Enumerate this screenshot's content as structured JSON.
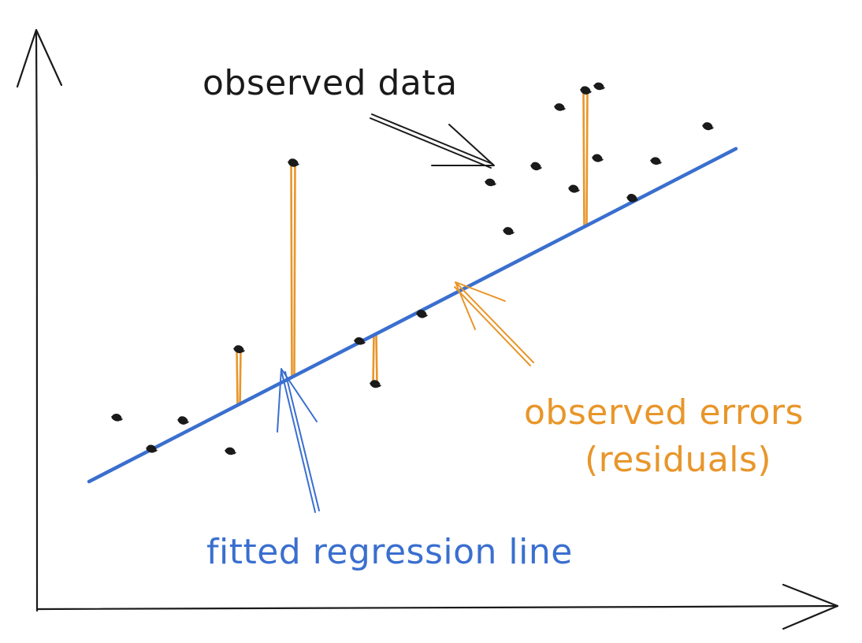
{
  "chart_data": {
    "type": "scatter",
    "title": "",
    "xlabel": "",
    "ylabel": "",
    "grid": false,
    "legend": "none",
    "axes": "unlabeled arrows",
    "xlim": [
      0,
      100
    ],
    "ylim": [
      0,
      100
    ],
    "points": [
      {
        "x": 10.1,
        "y": 33.0
      },
      {
        "x": 14.5,
        "y": 27.6
      },
      {
        "x": 18.5,
        "y": 32.5
      },
      {
        "x": 24.5,
        "y": 27.2
      },
      {
        "x": 25.6,
        "y": 44.8
      },
      {
        "x": 32.5,
        "y": 77.0
      },
      {
        "x": 40.9,
        "y": 46.2
      },
      {
        "x": 42.9,
        "y": 38.8
      },
      {
        "x": 48.8,
        "y": 50.9
      },
      {
        "x": 57.5,
        "y": 73.6
      },
      {
        "x": 59.8,
        "y": 65.2
      },
      {
        "x": 63.3,
        "y": 76.4
      },
      {
        "x": 66.3,
        "y": 86.6
      },
      {
        "x": 68.1,
        "y": 72.5
      },
      {
        "x": 69.6,
        "y": 89.5
      },
      {
        "x": 71.3,
        "y": 90.2
      },
      {
        "x": 71.1,
        "y": 77.8
      },
      {
        "x": 75.5,
        "y": 70.9
      },
      {
        "x": 78.5,
        "y": 77.3
      },
      {
        "x": 85.1,
        "y": 83.3
      }
    ],
    "regression_line": {
      "label": "fitted regression line",
      "slope": 0.7,
      "intercept": 17.4,
      "x_range": [
        6.6,
        88.7
      ],
      "color": "#3a6fcf"
    },
    "residuals": {
      "label": "observed errors (residuals)",
      "color": "#e8962a",
      "highlighted_point_indices": [
        4,
        5,
        7,
        8,
        14
      ]
    },
    "annotations": [
      {
        "text": "observed data",
        "color": "#1a1a1a"
      },
      {
        "text": "fitted regression line",
        "color": "#3a6fcf"
      },
      {
        "text": "observed errors",
        "color": "#e8962a"
      },
      {
        "text": "(residuals)",
        "color": "#e8962a"
      }
    ]
  },
  "colors": {
    "ink": "#1a1a1a",
    "line": "#3a6fcf",
    "residual": "#e8962a",
    "background": "#ffffff"
  }
}
